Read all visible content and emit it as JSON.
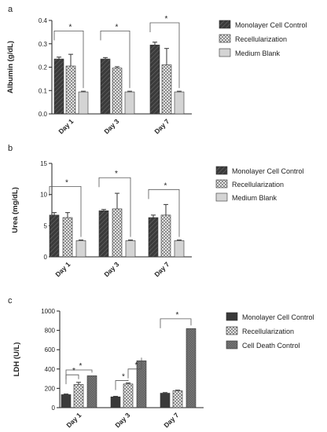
{
  "colors": {
    "dark": "#3a3a3a",
    "checker_a": "#e2e2e2",
    "checker_b": "#8c8c8c",
    "light": "#d4d4d4",
    "death": "#777777",
    "axis": "#222222"
  },
  "chart_data": [
    {
      "panel": "a",
      "type": "bar",
      "ylabel": "Albumin (g/dL)",
      "ylim": [
        0,
        0.4
      ],
      "yticks": [
        "0.0",
        "0.1",
        "0.2",
        "0.3",
        "0.4"
      ],
      "tick_values": [
        0,
        0.1,
        0.2,
        0.3,
        0.4
      ],
      "categories": [
        "Day 1",
        "Day 3",
        "Day 7"
      ],
      "series": [
        {
          "name": "Monolayer Cell Control",
          "pattern": "diag",
          "values": [
            0.235,
            0.235,
            0.295
          ],
          "errors": [
            0.008,
            0.006,
            0.012
          ]
        },
        {
          "name": "Recellularization",
          "pattern": "check",
          "values": [
            0.205,
            0.196,
            0.21
          ],
          "errors": [
            0.05,
            0.006,
            0.07
          ]
        },
        {
          "name": "Medium Blank",
          "pattern": "light",
          "values": [
            0.094,
            0.094,
            0.094
          ],
          "errors": [
            0.003,
            0.003,
            0.003
          ]
        }
      ],
      "significance": [
        {
          "label": "*",
          "level": 0.355,
          "from": [
            0,
            1
          ],
          "to": 2,
          "group": 0
        },
        {
          "label": "*",
          "level": 0.355,
          "from": [
            0,
            1
          ],
          "to": 2,
          "group": 1
        },
        {
          "label": "*",
          "level": 0.39,
          "from": [
            0,
            1
          ],
          "to": 2,
          "group": 2
        }
      ]
    },
    {
      "panel": "b",
      "type": "bar",
      "ylabel": "Urea (mg/dL)",
      "ylim": [
        0,
        15
      ],
      "yticks": [
        "0",
        "5",
        "10",
        "15"
      ],
      "tick_values": [
        0,
        5,
        10,
        15
      ],
      "categories": [
        "Day 1",
        "Day 3",
        "Day 7"
      ],
      "series": [
        {
          "name": "Monolayer Cell Control",
          "pattern": "diag",
          "values": [
            6.7,
            7.4,
            6.3
          ],
          "errors": [
            0.4,
            0.2,
            0.4
          ]
        },
        {
          "name": "Recellularization",
          "pattern": "check",
          "values": [
            6.3,
            7.7,
            6.7
          ],
          "errors": [
            0.8,
            2.5,
            1.7
          ]
        },
        {
          "name": "Medium Blank",
          "pattern": "light",
          "values": [
            2.6,
            2.6,
            2.6
          ],
          "errors": [
            0.1,
            0.1,
            0.1
          ]
        }
      ],
      "significance": [
        {
          "label": "*",
          "level": 11.3,
          "from": [
            0,
            1
          ],
          "to": 2,
          "group": 0
        },
        {
          "label": "*",
          "level": 12.7,
          "from": [
            0,
            1
          ],
          "to": 2,
          "group": 1
        },
        {
          "label": "*",
          "level": 10.8,
          "from": [
            0,
            1
          ],
          "to": 2,
          "group": 2
        }
      ]
    },
    {
      "panel": "c",
      "type": "bar",
      "ylabel": "LDH (U/L)",
      "ylim": [
        0,
        1000
      ],
      "yticks": [
        "0",
        "200",
        "400",
        "600",
        "800",
        "1000"
      ],
      "tick_values": [
        0,
        200,
        400,
        600,
        800,
        1000
      ],
      "categories": [
        "Day 1",
        "Day 3",
        "Day 7"
      ],
      "series": [
        {
          "name": "Monolayer Cell Control",
          "pattern": "dark",
          "values": [
            135,
            112,
            150
          ],
          "errors": [
            6,
            5,
            6
          ]
        },
        {
          "name": "Recellularization",
          "pattern": "check",
          "values": [
            240,
            245,
            175
          ],
          "errors": [
            22,
            10,
            6
          ]
        },
        {
          "name": "Cell Death Control",
          "pattern": "death",
          "values": [
            330,
            485,
            818
          ],
          "errors": [
            0,
            0,
            0
          ]
        }
      ],
      "significance": [
        {
          "label": "*",
          "level": 390,
          "from": [
            0
          ],
          "to": 2,
          "group": 0
        },
        {
          "label": "*",
          "level": 340,
          "from": [
            0
          ],
          "to": 1,
          "group": 0
        },
        {
          "label": "*",
          "level": 400,
          "from": [
            1
          ],
          "to": 2,
          "group": 1
        },
        {
          "label": "*",
          "level": 280,
          "from": [
            0
          ],
          "to": 1,
          "group": 1
        },
        {
          "label": "*",
          "level": 920,
          "from": [
            0,
            1
          ],
          "to": 2,
          "group": 2
        }
      ]
    }
  ]
}
